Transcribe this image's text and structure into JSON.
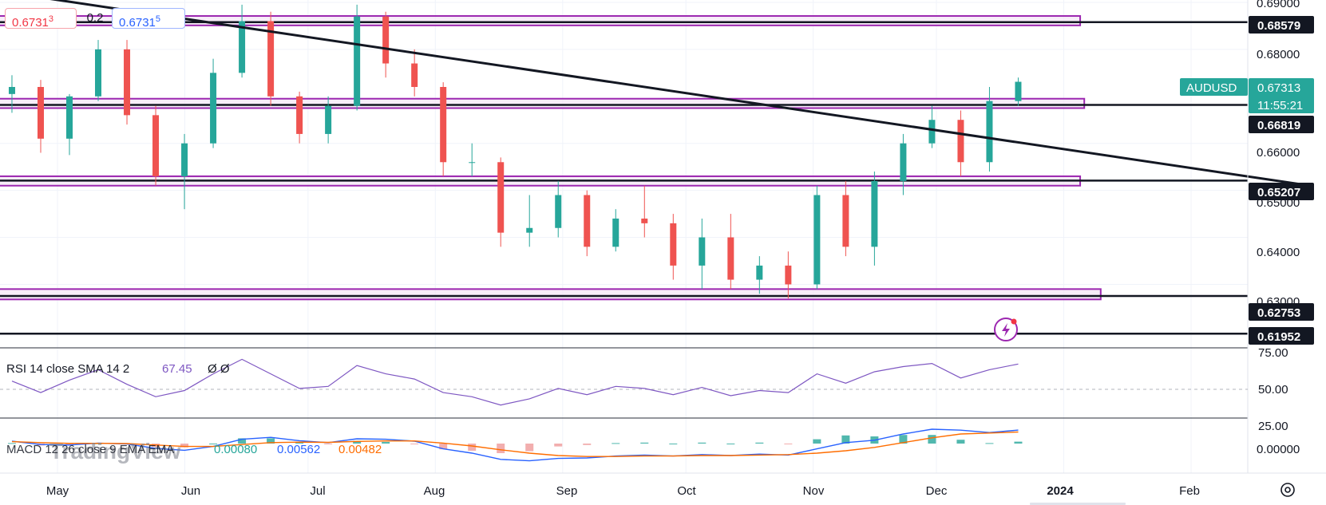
{
  "quote_panel": {
    "sell_price": "0.6731",
    "sell_sup": "3",
    "spread": "0.2",
    "buy_price": "0.6731",
    "buy_sup": "5"
  },
  "symbol": {
    "name": "AUDUSD",
    "price": "0.67313",
    "countdown": "11:55:21",
    "color": "#26a69a"
  },
  "price_axis": {
    "ticks": [
      "0.69000",
      "0.68000",
      "0.66000",
      "0.65000",
      "0.64000",
      "0.63000"
    ],
    "level_labels": [
      "0.68579",
      "0.66819",
      "0.65207",
      "0.62753",
      "0.61952"
    ]
  },
  "time_axis": {
    "labels": [
      "May",
      "Jun",
      "Jul",
      "Aug",
      "Sep",
      "Oct",
      "Nov",
      "Dec",
      "2024",
      "Feb"
    ]
  },
  "rsi": {
    "legend": "RSI 14 close SMA 14 2",
    "value": "67.45",
    "extra": "Ø Ø",
    "ticks": [
      "75.00",
      "50.00",
      "25.00"
    ],
    "color": "#7e57c2"
  },
  "macd": {
    "legend": "MACD 12 26 close 9 EMA EMA",
    "hist": "0.00080",
    "macd_value": "0.00562",
    "signal": "0.00482",
    "tick": "0.00000",
    "macd_color": "#2962ff",
    "signal_color": "#ff6d00",
    "hist_color": "#26a69a"
  },
  "watermark": "TradingView",
  "colors": {
    "up": "#26a69a",
    "down": "#ef5350",
    "zone_border": "#9c27b0",
    "zone_fill": "#f3e5f5"
  },
  "chart_data": {
    "type": "candlestick",
    "symbol": "AUDUSD",
    "last": 0.67313,
    "y_range": [
      0.6165,
      0.6905
    ],
    "horizontal_levels": [
      0.68579,
      0.66819,
      0.65207,
      0.62753,
      0.61952
    ],
    "zones": [
      [
        0.6851,
        0.6871
      ],
      [
        0.6675,
        0.6695
      ],
      [
        0.651,
        0.653
      ],
      [
        0.6268,
        0.629
      ]
    ],
    "trendline": [
      [
        "2023-04-01",
        0.6944
      ],
      [
        "2024-03-01",
        0.651
      ]
    ],
    "candles": [
      {
        "date": "2023-04-17",
        "o": 0.6705,
        "h": 0.6745,
        "l": 0.6665,
        "c": 0.672
      },
      {
        "date": "2023-04-24",
        "o": 0.672,
        "h": 0.6735,
        "l": 0.658,
        "c": 0.661
      },
      {
        "date": "2023-05-01",
        "o": 0.661,
        "h": 0.6705,
        "l": 0.6575,
        "c": 0.67
      },
      {
        "date": "2023-05-08",
        "o": 0.67,
        "h": 0.682,
        "l": 0.669,
        "c": 0.68
      },
      {
        "date": "2023-05-15",
        "o": 0.68,
        "h": 0.682,
        "l": 0.664,
        "c": 0.666
      },
      {
        "date": "2023-05-22",
        "o": 0.666,
        "h": 0.668,
        "l": 0.651,
        "c": 0.653
      },
      {
        "date": "2023-05-29",
        "o": 0.653,
        "h": 0.662,
        "l": 0.646,
        "c": 0.66
      },
      {
        "date": "2023-06-05",
        "o": 0.66,
        "h": 0.678,
        "l": 0.659,
        "c": 0.675
      },
      {
        "date": "2023-06-12",
        "o": 0.675,
        "h": 0.6895,
        "l": 0.674,
        "c": 0.686
      },
      {
        "date": "2023-06-19",
        "o": 0.686,
        "h": 0.688,
        "l": 0.668,
        "c": 0.67
      },
      {
        "date": "2023-06-26",
        "o": 0.67,
        "h": 0.671,
        "l": 0.66,
        "c": 0.662
      },
      {
        "date": "2023-07-03",
        "o": 0.662,
        "h": 0.67,
        "l": 0.66,
        "c": 0.668
      },
      {
        "date": "2023-07-10",
        "o": 0.668,
        "h": 0.6895,
        "l": 0.667,
        "c": 0.687
      },
      {
        "date": "2023-07-17",
        "o": 0.687,
        "h": 0.688,
        "l": 0.674,
        "c": 0.677
      },
      {
        "date": "2023-07-24",
        "o": 0.677,
        "h": 0.68,
        "l": 0.67,
        "c": 0.672
      },
      {
        "date": "2023-07-31",
        "o": 0.672,
        "h": 0.673,
        "l": 0.653,
        "c": 0.656
      },
      {
        "date": "2023-08-07",
        "o": 0.656,
        "h": 0.66,
        "l": 0.653,
        "c": 0.656
      },
      {
        "date": "2023-08-14",
        "o": 0.656,
        "h": 0.657,
        "l": 0.638,
        "c": 0.641
      },
      {
        "date": "2023-08-21",
        "o": 0.641,
        "h": 0.649,
        "l": 0.638,
        "c": 0.642
      },
      {
        "date": "2023-08-28",
        "o": 0.642,
        "h": 0.652,
        "l": 0.64,
        "c": 0.649
      },
      {
        "date": "2023-09-04",
        "o": 0.649,
        "h": 0.65,
        "l": 0.636,
        "c": 0.638
      },
      {
        "date": "2023-09-11",
        "o": 0.638,
        "h": 0.646,
        "l": 0.637,
        "c": 0.644
      },
      {
        "date": "2023-09-18",
        "o": 0.644,
        "h": 0.651,
        "l": 0.64,
        "c": 0.643
      },
      {
        "date": "2023-09-25",
        "o": 0.643,
        "h": 0.645,
        "l": 0.631,
        "c": 0.634
      },
      {
        "date": "2023-10-02",
        "o": 0.634,
        "h": 0.644,
        "l": 0.629,
        "c": 0.64
      },
      {
        "date": "2023-10-09",
        "o": 0.64,
        "h": 0.645,
        "l": 0.629,
        "c": 0.631
      },
      {
        "date": "2023-10-16",
        "o": 0.631,
        "h": 0.636,
        "l": 0.628,
        "c": 0.634
      },
      {
        "date": "2023-10-23",
        "o": 0.634,
        "h": 0.637,
        "l": 0.627,
        "c": 0.63
      },
      {
        "date": "2023-10-30",
        "o": 0.63,
        "h": 0.651,
        "l": 0.629,
        "c": 0.649
      },
      {
        "date": "2023-11-06",
        "o": 0.649,
        "h": 0.652,
        "l": 0.636,
        "c": 0.638
      },
      {
        "date": "2023-11-13",
        "o": 0.638,
        "h": 0.654,
        "l": 0.634,
        "c": 0.652
      },
      {
        "date": "2023-11-20",
        "o": 0.652,
        "h": 0.662,
        "l": 0.649,
        "c": 0.66
      },
      {
        "date": "2023-11-27",
        "o": 0.66,
        "h": 0.668,
        "l": 0.659,
        "c": 0.665
      },
      {
        "date": "2023-12-04",
        "o": 0.665,
        "h": 0.667,
        "l": 0.653,
        "c": 0.656
      },
      {
        "date": "2023-12-11",
        "o": 0.656,
        "h": 0.672,
        "l": 0.654,
        "c": 0.669
      },
      {
        "date": "2023-12-18",
        "o": 0.669,
        "h": 0.674,
        "l": 0.668,
        "c": 0.6731
      }
    ],
    "rsi_ylim": [
      17,
      80
    ],
    "rsi": [
      {
        "date": "2023-04-17",
        "v": 51
      },
      {
        "date": "2023-04-24",
        "v": 40
      },
      {
        "date": "2023-05-01",
        "v": 52
      },
      {
        "date": "2023-05-08",
        "v": 62
      },
      {
        "date": "2023-05-15",
        "v": 48
      },
      {
        "date": "2023-05-22",
        "v": 36
      },
      {
        "date": "2023-05-29",
        "v": 42
      },
      {
        "date": "2023-06-05",
        "v": 58
      },
      {
        "date": "2023-06-12",
        "v": 72
      },
      {
        "date": "2023-06-19",
        "v": 58
      },
      {
        "date": "2023-06-26",
        "v": 44
      },
      {
        "date": "2023-07-03",
        "v": 46
      },
      {
        "date": "2023-07-10",
        "v": 66
      },
      {
        "date": "2023-07-17",
        "v": 58
      },
      {
        "date": "2023-07-24",
        "v": 53
      },
      {
        "date": "2023-07-31",
        "v": 40
      },
      {
        "date": "2023-08-07",
        "v": 36
      },
      {
        "date": "2023-08-14",
        "v": 28
      },
      {
        "date": "2023-08-21",
        "v": 34
      },
      {
        "date": "2023-08-28",
        "v": 44
      },
      {
        "date": "2023-09-04",
        "v": 38
      },
      {
        "date": "2023-09-11",
        "v": 46
      },
      {
        "date": "2023-09-18",
        "v": 44
      },
      {
        "date": "2023-09-25",
        "v": 38
      },
      {
        "date": "2023-10-02",
        "v": 45
      },
      {
        "date": "2023-10-09",
        "v": 37
      },
      {
        "date": "2023-10-16",
        "v": 42
      },
      {
        "date": "2023-10-23",
        "v": 40
      },
      {
        "date": "2023-10-30",
        "v": 58
      },
      {
        "date": "2023-11-06",
        "v": 49
      },
      {
        "date": "2023-11-13",
        "v": 60
      },
      {
        "date": "2023-11-20",
        "v": 65
      },
      {
        "date": "2023-11-27",
        "v": 68
      },
      {
        "date": "2023-12-04",
        "v": 54
      },
      {
        "date": "2023-12-11",
        "v": 62
      },
      {
        "date": "2023-12-18",
        "v": 67.45
      }
    ],
    "macd_ylim": [
      -0.012,
      0.01
    ],
    "macd": [
      {
        "date": "2023-04-17",
        "m": 0.001,
        "s": 0.0008
      },
      {
        "date": "2023-04-24",
        "m": -0.0004,
        "s": 0.0004
      },
      {
        "date": "2023-05-01",
        "m": -0.0006,
        "s": 0.0001
      },
      {
        "date": "2023-05-08",
        "m": 0.0002,
        "s": 0.0001
      },
      {
        "date": "2023-05-15",
        "m": -0.0002,
        "s": 0.0
      },
      {
        "date": "2023-05-22",
        "m": -0.002,
        "s": -0.0006
      },
      {
        "date": "2023-05-29",
        "m": -0.0028,
        "s": -0.0012
      },
      {
        "date": "2023-06-05",
        "m": -0.0012,
        "s": -0.0012
      },
      {
        "date": "2023-06-12",
        "m": 0.0018,
        "s": -0.0004
      },
      {
        "date": "2023-06-19",
        "m": 0.0026,
        "s": 0.0004
      },
      {
        "date": "2023-06-26",
        "m": 0.0012,
        "s": 0.0006
      },
      {
        "date": "2023-07-03",
        "m": 0.0004,
        "s": 0.0005
      },
      {
        "date": "2023-07-10",
        "m": 0.002,
        "s": 0.0009
      },
      {
        "date": "2023-07-17",
        "m": 0.0018,
        "s": 0.0011
      },
      {
        "date": "2023-07-24",
        "m": 0.001,
        "s": 0.0011
      },
      {
        "date": "2023-07-31",
        "m": -0.0022,
        "s": 0.0002
      },
      {
        "date": "2023-08-07",
        "m": -0.004,
        "s": -0.001
      },
      {
        "date": "2023-08-14",
        "m": -0.0066,
        "s": -0.0026
      },
      {
        "date": "2023-08-21",
        "m": -0.0072,
        "s": -0.004
      },
      {
        "date": "2023-08-28",
        "m": -0.0062,
        "s": -0.005
      },
      {
        "date": "2023-09-04",
        "m": -0.006,
        "s": -0.0054
      },
      {
        "date": "2023-09-11",
        "m": -0.0052,
        "s": -0.0054
      },
      {
        "date": "2023-09-18",
        "m": -0.0048,
        "s": -0.0052
      },
      {
        "date": "2023-09-25",
        "m": -0.0052,
        "s": -0.0052
      },
      {
        "date": "2023-10-02",
        "m": -0.0046,
        "s": -0.005
      },
      {
        "date": "2023-10-09",
        "m": -0.005,
        "s": -0.005
      },
      {
        "date": "2023-10-16",
        "m": -0.0044,
        "s": -0.0048
      },
      {
        "date": "2023-10-23",
        "m": -0.0048,
        "s": -0.0046
      },
      {
        "date": "2023-10-30",
        "m": -0.0022,
        "s": -0.004
      },
      {
        "date": "2023-11-06",
        "m": 0.0004,
        "s": -0.003
      },
      {
        "date": "2023-11-13",
        "m": 0.0014,
        "s": -0.0016
      },
      {
        "date": "2023-11-20",
        "m": 0.004,
        "s": 0.0004
      },
      {
        "date": "2023-11-27",
        "m": 0.006,
        "s": 0.0024
      },
      {
        "date": "2023-12-04",
        "m": 0.0056,
        "s": 0.004
      },
      {
        "date": "2023-12-11",
        "m": 0.0046,
        "s": 0.0044
      },
      {
        "date": "2023-12-18",
        "m": 0.00562,
        "s": 0.00482
      }
    ]
  }
}
